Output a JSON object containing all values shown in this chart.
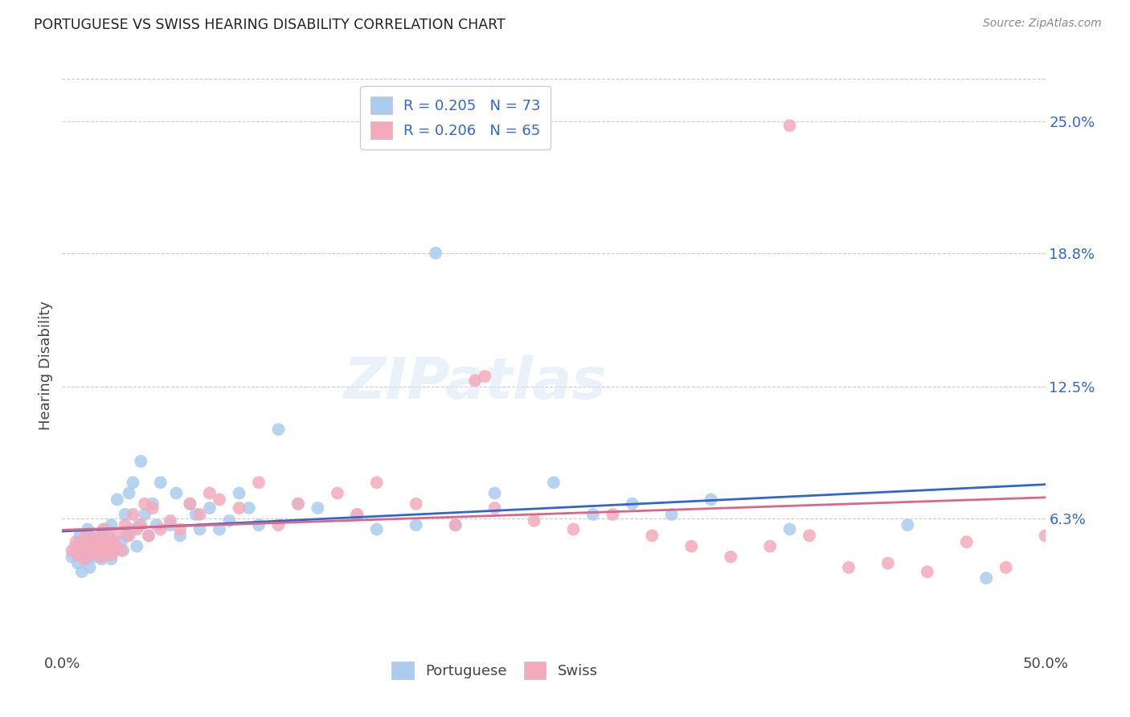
{
  "title": "PORTUGUESE VS SWISS HEARING DISABILITY CORRELATION CHART",
  "source": "Source: ZipAtlas.com",
  "ylabel": "Hearing Disability",
  "ytick_labels": [
    "25.0%",
    "18.8%",
    "12.5%",
    "6.3%"
  ],
  "ytick_values": [
    0.25,
    0.188,
    0.125,
    0.063
  ],
  "xlim": [
    0.0,
    0.5
  ],
  "ylim": [
    0.0,
    0.27
  ],
  "legend_entries": [
    {
      "label": "R = 0.205   N = 73",
      "color": "#aaccee"
    },
    {
      "label": "R = 0.206   N = 65",
      "color": "#f4aabb"
    }
  ],
  "legend_labels_bottom": [
    "Portuguese",
    "Swiss"
  ],
  "portuguese_color": "#aaccee",
  "swiss_color": "#f4aabb",
  "portuguese_line_color": "#3366cc",
  "swiss_line_color": "#dd6688",
  "portuguese_x": [
    0.005,
    0.007,
    0.008,
    0.009,
    0.01,
    0.01,
    0.011,
    0.012,
    0.013,
    0.013,
    0.014,
    0.015,
    0.015,
    0.016,
    0.017,
    0.018,
    0.019,
    0.02,
    0.02,
    0.021,
    0.022,
    0.022,
    0.023,
    0.024,
    0.025,
    0.025,
    0.026,
    0.027,
    0.028,
    0.03,
    0.031,
    0.032,
    0.033,
    0.034,
    0.035,
    0.036,
    0.038,
    0.039,
    0.04,
    0.042,
    0.044,
    0.046,
    0.048,
    0.05,
    0.055,
    0.058,
    0.06,
    0.065,
    0.068,
    0.07,
    0.075,
    0.08,
    0.085,
    0.09,
    0.095,
    0.1,
    0.11,
    0.12,
    0.13,
    0.15,
    0.16,
    0.18,
    0.19,
    0.2,
    0.22,
    0.25,
    0.27,
    0.29,
    0.31,
    0.33,
    0.37,
    0.43,
    0.47
  ],
  "portuguese_y": [
    0.045,
    0.05,
    0.042,
    0.055,
    0.038,
    0.048,
    0.052,
    0.046,
    0.044,
    0.058,
    0.04,
    0.05,
    0.054,
    0.045,
    0.05,
    0.048,
    0.052,
    0.044,
    0.055,
    0.048,
    0.05,
    0.058,
    0.046,
    0.052,
    0.044,
    0.06,
    0.048,
    0.05,
    0.072,
    0.052,
    0.048,
    0.065,
    0.055,
    0.075,
    0.058,
    0.08,
    0.05,
    0.06,
    0.09,
    0.065,
    0.055,
    0.07,
    0.06,
    0.08,
    0.06,
    0.075,
    0.055,
    0.07,
    0.065,
    0.058,
    0.068,
    0.058,
    0.062,
    0.075,
    0.068,
    0.06,
    0.105,
    0.07,
    0.068,
    0.065,
    0.058,
    0.06,
    0.188,
    0.06,
    0.075,
    0.08,
    0.065,
    0.07,
    0.065,
    0.072,
    0.058,
    0.06,
    0.035
  ],
  "swiss_x": [
    0.005,
    0.007,
    0.008,
    0.01,
    0.011,
    0.012,
    0.013,
    0.014,
    0.015,
    0.016,
    0.017,
    0.018,
    0.019,
    0.02,
    0.021,
    0.022,
    0.023,
    0.024,
    0.025,
    0.026,
    0.027,
    0.028,
    0.03,
    0.032,
    0.034,
    0.036,
    0.038,
    0.04,
    0.042,
    0.044,
    0.046,
    0.05,
    0.055,
    0.06,
    0.065,
    0.07,
    0.075,
    0.08,
    0.09,
    0.1,
    0.11,
    0.12,
    0.14,
    0.15,
    0.16,
    0.18,
    0.2,
    0.22,
    0.24,
    0.26,
    0.28,
    0.3,
    0.32,
    0.34,
    0.36,
    0.38,
    0.4,
    0.42,
    0.44,
    0.46,
    0.48,
    0.5,
    0.37,
    0.21,
    0.215
  ],
  "swiss_y": [
    0.048,
    0.052,
    0.046,
    0.05,
    0.044,
    0.055,
    0.048,
    0.052,
    0.046,
    0.05,
    0.054,
    0.048,
    0.052,
    0.045,
    0.058,
    0.05,
    0.048,
    0.054,
    0.046,
    0.052,
    0.05,
    0.056,
    0.048,
    0.06,
    0.055,
    0.065,
    0.058,
    0.06,
    0.07,
    0.055,
    0.068,
    0.058,
    0.062,
    0.058,
    0.07,
    0.065,
    0.075,
    0.072,
    0.068,
    0.08,
    0.06,
    0.07,
    0.075,
    0.065,
    0.08,
    0.07,
    0.06,
    0.068,
    0.062,
    0.058,
    0.065,
    0.055,
    0.05,
    0.045,
    0.05,
    0.055,
    0.04,
    0.042,
    0.038,
    0.052,
    0.04,
    0.055,
    0.248,
    0.128,
    0.13
  ]
}
